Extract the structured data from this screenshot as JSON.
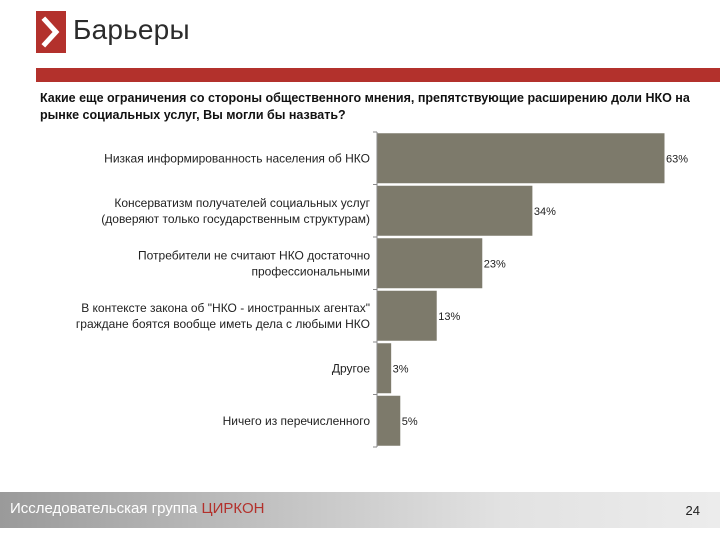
{
  "header": {
    "title": "Барьеры",
    "logo_icon": "chevron-right-icon",
    "accent_color": "#b3312c"
  },
  "question": "Какие еще ограничения со стороны общественного мнения, препятствующие расширению доли НКО на рынке социальных услуг, Вы могли бы назвать?",
  "chart_data": {
    "type": "bar",
    "orientation": "horizontal",
    "categories": [
      [
        "Низкая информированность населения об НКО"
      ],
      [
        "Консерватизм получателей социальных услуг",
        "(доверяют только государственным структурам)"
      ],
      [
        "Потребители не считают НКО достаточно",
        "профессиональными"
      ],
      [
        "В контексте закона об \"НКО - иностранных агентах\"",
        "граждане боятся вообще иметь дела с любыми НКО"
      ],
      [
        "Другое"
      ],
      [
        "Ничего из перечисленного"
      ]
    ],
    "values": [
      63,
      34,
      23,
      13,
      3,
      5
    ],
    "value_labels": [
      "63%",
      "34%",
      "23%",
      "13%",
      "3%",
      "5%"
    ],
    "bar_color": "#7d7a6b",
    "xlim": [
      0,
      63
    ],
    "grid": false,
    "legend": "none"
  },
  "footer": {
    "org_prefix": "Исследовательская группа ",
    "org_brand": "ЦИРКОН",
    "page_number": "24"
  }
}
